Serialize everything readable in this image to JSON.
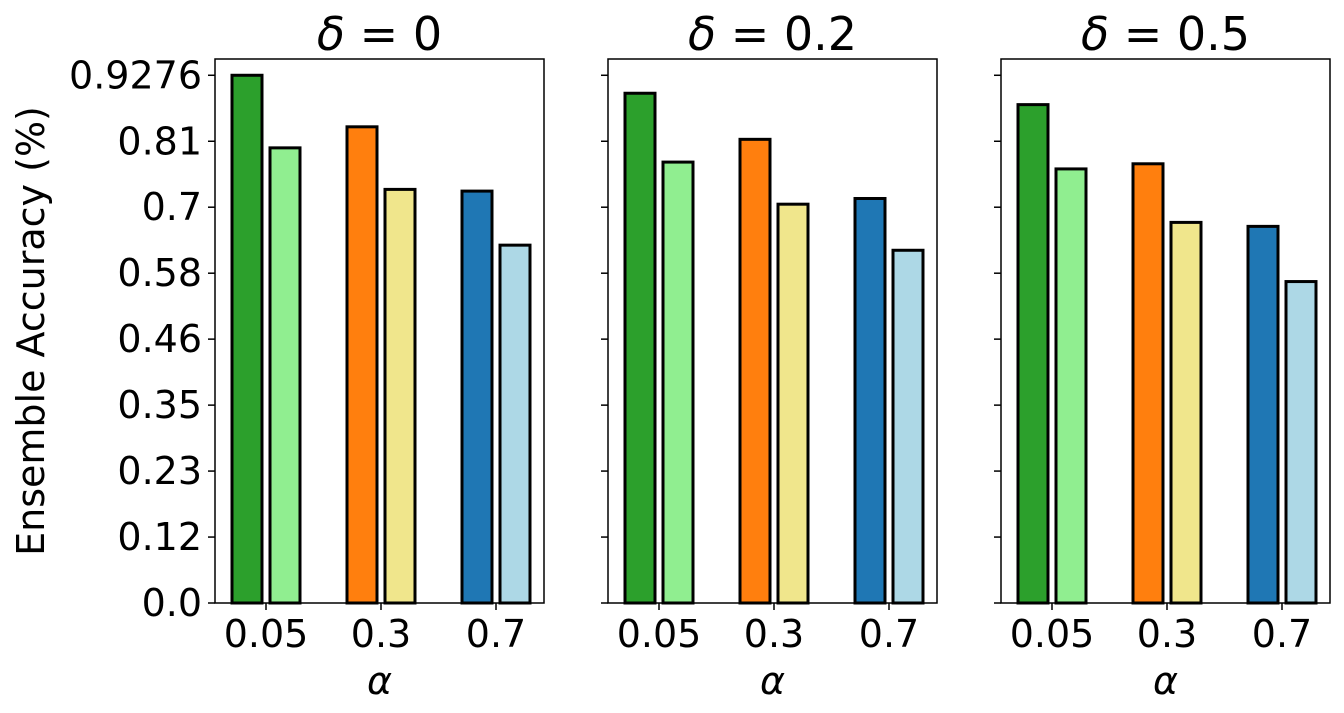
{
  "chart_data": {
    "type": "bar",
    "ylabel": "Ensemble Accuracy (%)",
    "ylim": [
      0,
      0.9562
    ],
    "yticks": [
      "0.0",
      "0.12",
      "0.23",
      "0.35",
      "0.46",
      "0.58",
      "0.7",
      "0.81",
      "0.9276"
    ],
    "ytick_values": [
      0.0,
      0.1159,
      0.2319,
      0.3478,
      0.4638,
      0.5797,
      0.6957,
      0.8116,
      0.9276
    ],
    "grid": false,
    "bar_colors": [
      "#2ca02c",
      "#90ee90",
      "#ff7f0e",
      "#f0e68c",
      "#1f77b4",
      "#add8e6"
    ],
    "edge_color": "#000000",
    "panels": [
      {
        "title_symbol": "δ",
        "title_value": " = 0",
        "xlabel": "α",
        "categories": [
          "0.05",
          "0.3",
          "0.7"
        ],
        "values": [
          [
            0.9276,
            0.8
          ],
          [
            0.837,
            0.727
          ],
          [
            0.724,
            0.629
          ]
        ]
      },
      {
        "title_symbol": "δ",
        "title_value": " = 0.2",
        "xlabel": "α",
        "categories": [
          "0.05",
          "0.3",
          "0.7"
        ],
        "values": [
          [
            0.896,
            0.775
          ],
          [
            0.815,
            0.701
          ],
          [
            0.711,
            0.62
          ]
        ]
      },
      {
        "title_symbol": "δ",
        "title_value": " = 0.5",
        "xlabel": "α",
        "categories": [
          "0.05",
          "0.3",
          "0.7"
        ],
        "values": [
          [
            0.876,
            0.763
          ],
          [
            0.772,
            0.669
          ],
          [
            0.662,
            0.565
          ]
        ]
      }
    ]
  }
}
